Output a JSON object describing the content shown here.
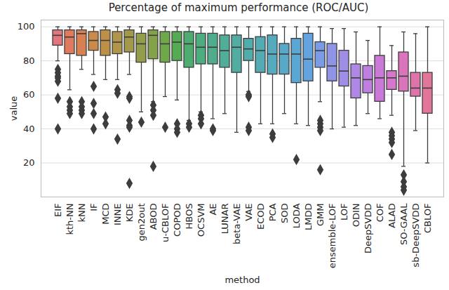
{
  "chart_data": {
    "type": "box",
    "title": "Percentage of maximum performance (ROC/AUC)",
    "x_label": "method",
    "y_label": "value",
    "categories": [
      "EIF",
      "kth-NN",
      "kNN",
      "IF",
      "MCD",
      "INNE",
      "KDE",
      "gen2out",
      "ABOD",
      "u-CBLOF",
      "COPOD",
      "HBOS",
      "OCSVM",
      "AE",
      "LUNAR",
      "beta-VAE",
      "VAE",
      "ECOD",
      "PCA",
      "SOD",
      "LODA",
      "LMDD",
      "GMM",
      "ensemble-LOF",
      "LOF",
      "ODIN",
      "DeepSVDD",
      "COF",
      "ALAD",
      "SO-GAAL",
      "sb-DeepSVDD",
      "CBLOF"
    ],
    "whisker_low": [
      80,
      63,
      75,
      72,
      69,
      69,
      72,
      50,
      56,
      59,
      57,
      45,
      50,
      46,
      49,
      38,
      62,
      43,
      43,
      49,
      43,
      42,
      56,
      40,
      41,
      42,
      49,
      46,
      48,
      18,
      39,
      20
    ],
    "q1": [
      89,
      84,
      83,
      86,
      83,
      84,
      85,
      79,
      81,
      79,
      80,
      76,
      78,
      78,
      76,
      73,
      80,
      73,
      72,
      72,
      67,
      68,
      76,
      68,
      65,
      58,
      61,
      56,
      63,
      62,
      59,
      49
    ],
    "median": [
      95,
      94,
      96,
      92,
      92,
      91,
      94,
      90,
      95,
      90,
      91,
      90,
      88,
      88,
      86,
      88,
      87,
      86,
      84,
      84,
      84,
      81,
      86,
      77,
      74,
      70,
      69,
      70,
      70,
      71,
      64,
      64
    ],
    "q3": [
      98,
      98,
      98,
      97,
      98,
      97,
      98,
      96,
      98,
      97,
      97,
      97,
      96,
      96,
      95,
      95,
      93,
      94,
      95,
      90,
      93,
      96,
      91,
      90,
      86,
      78,
      77,
      83,
      74,
      85,
      73,
      73
    ],
    "whisker_high": [
      100,
      100,
      100,
      100,
      100,
      100,
      100,
      100,
      100,
      100,
      100,
      100,
      100,
      100,
      100,
      100,
      100,
      100,
      100,
      100,
      100,
      100,
      100,
      99,
      99,
      97,
      92,
      100,
      89,
      97,
      96,
      100
    ],
    "outliers": [
      [
        75,
        73,
        71,
        70,
        68,
        58,
        40
      ],
      [
        56,
        53,
        51,
        49
      ],
      [
        56,
        53,
        51,
        49
      ],
      [
        65,
        55,
        49,
        40
      ],
      [
        47,
        43
      ],
      [
        63,
        61,
        34
      ],
      [
        59,
        58,
        45,
        42,
        41,
        8
      ],
      [
        44
      ],
      [
        54,
        51,
        48,
        18
      ],
      [
        41
      ],
      [
        43,
        40,
        38
      ],
      [
        43,
        41
      ],
      [
        48,
        46,
        43
      ],
      [
        40,
        39
      ],
      [],
      [],
      [
        60,
        59,
        41,
        39
      ],
      [],
      [
        37,
        35
      ],
      [],
      [
        22
      ],
      [],
      [
        45,
        43,
        41,
        39,
        16
      ],
      [],
      [],
      [],
      [],
      [],
      [
        38,
        36,
        34,
        32,
        25
      ],
      [
        13,
        9,
        6,
        4
      ],
      [],
      []
    ],
    "colors": [
      "#e1767f",
      "#df7a5f",
      "#d88050",
      "#ca8a4a",
      "#bd904a",
      "#b0954a",
      "#a29a4a",
      "#949e4a",
      "#84a24a",
      "#6fa74b",
      "#54ab54",
      "#4dac6f",
      "#4ead80",
      "#4fad8d",
      "#50ad98",
      "#51aca2",
      "#52acab",
      "#53abb4",
      "#55aabd",
      "#57a9c7",
      "#5aa7d3",
      "#62a3e0",
      "#7a9ce6",
      "#8f95e6",
      "#a08ee6",
      "#af87e4",
      "#bd80e0",
      "#cb79d8",
      "#d676cc",
      "#dc74bc",
      "#df74ab",
      "#e1759a"
    ],
    "ylim": [
      0,
      104
    ],
    "yticks": [
      20,
      40,
      60,
      80,
      100
    ],
    "grid": true
  }
}
